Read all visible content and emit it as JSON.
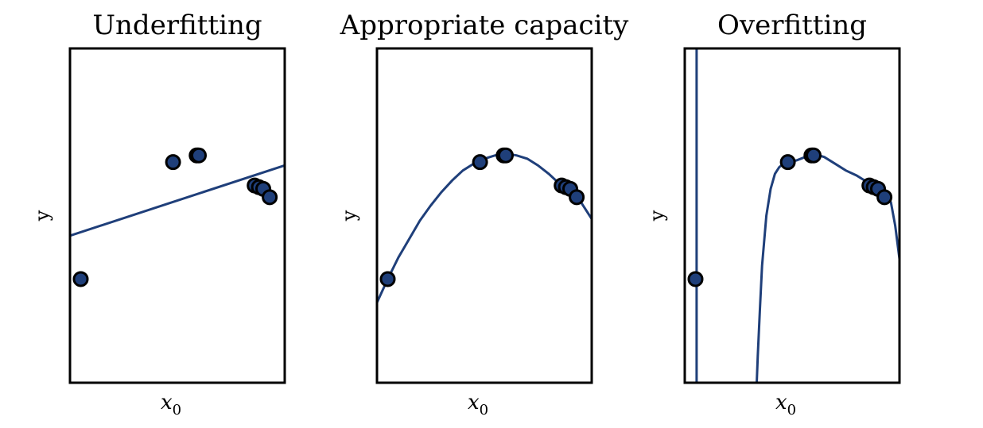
{
  "chart_data": [
    {
      "type": "scatter",
      "title": "Underfitting",
      "xlabel": "x",
      "xlabel_sub": "0",
      "ylabel": "y",
      "xlim": [
        0,
        1
      ],
      "ylim": [
        0,
        1
      ],
      "colors": {
        "series": "#1f3f7a",
        "marker_edge": "#000000"
      },
      "points": [
        {
          "x": 0.05,
          "y": 0.31
        },
        {
          "x": 0.48,
          "y": 0.66
        },
        {
          "x": 0.59,
          "y": 0.68
        },
        {
          "x": 0.6,
          "y": 0.68
        },
        {
          "x": 0.86,
          "y": 0.59
        },
        {
          "x": 0.88,
          "y": 0.585
        },
        {
          "x": 0.9,
          "y": 0.58
        },
        {
          "x": 0.93,
          "y": 0.555
        }
      ],
      "fit": {
        "kind": "line",
        "degree": 1,
        "x": [
          0.0,
          1.0
        ],
        "y": [
          0.44,
          0.65
        ]
      }
    },
    {
      "type": "scatter",
      "title": "Appropriate capacity",
      "xlabel": "x",
      "xlabel_sub": "0",
      "ylabel": "y",
      "xlim": [
        0,
        1
      ],
      "ylim": [
        0,
        1
      ],
      "colors": {
        "series": "#1f3f7a",
        "marker_edge": "#000000"
      },
      "points": [
        {
          "x": 0.05,
          "y": 0.31
        },
        {
          "x": 0.48,
          "y": 0.66
        },
        {
          "x": 0.59,
          "y": 0.68
        },
        {
          "x": 0.6,
          "y": 0.68
        },
        {
          "x": 0.86,
          "y": 0.59
        },
        {
          "x": 0.88,
          "y": 0.585
        },
        {
          "x": 0.9,
          "y": 0.58
        },
        {
          "x": 0.93,
          "y": 0.555
        }
      ],
      "fit": {
        "kind": "curve",
        "degree": 2,
        "x": [
          0.0,
          0.05,
          0.1,
          0.15,
          0.2,
          0.25,
          0.3,
          0.35,
          0.4,
          0.45,
          0.5,
          0.55,
          0.6,
          0.65,
          0.7,
          0.75,
          0.8,
          0.85,
          0.9,
          0.95,
          1.0
        ],
        "y": [
          0.24,
          0.31,
          0.375,
          0.43,
          0.485,
          0.53,
          0.57,
          0.605,
          0.635,
          0.655,
          0.67,
          0.68,
          0.685,
          0.68,
          0.67,
          0.65,
          0.625,
          0.595,
          0.57,
          0.54,
          0.49
        ]
      }
    },
    {
      "type": "scatter",
      "title": "Overfitting",
      "xlabel": "x",
      "xlabel_sub": "0",
      "ylabel": "y",
      "xlim": [
        0,
        1
      ],
      "ylim": [
        0,
        1
      ],
      "colors": {
        "series": "#1f3f7a",
        "marker_edge": "#000000"
      },
      "points": [
        {
          "x": 0.05,
          "y": 0.31
        },
        {
          "x": 0.48,
          "y": 0.66
        },
        {
          "x": 0.59,
          "y": 0.68
        },
        {
          "x": 0.6,
          "y": 0.68
        },
        {
          "x": 0.86,
          "y": 0.59
        },
        {
          "x": 0.88,
          "y": 0.585
        },
        {
          "x": 0.9,
          "y": 0.58
        },
        {
          "x": 0.93,
          "y": 0.555
        }
      ],
      "fit": {
        "kind": "curve",
        "degree": "high",
        "segments": [
          {
            "x": [
              0.055,
              0.055
            ],
            "y": [
              0.0,
              1.0
            ]
          },
          {
            "x": [
              0.335,
              0.34,
              0.35,
              0.36,
              0.38,
              0.4,
              0.42,
              0.44,
              0.46,
              0.48,
              0.52,
              0.56,
              0.6,
              0.65,
              0.7,
              0.75,
              0.8,
              0.85,
              0.88,
              0.9,
              0.93,
              0.96,
              0.98,
              1.0
            ],
            "y": [
              0.0,
              0.08,
              0.22,
              0.35,
              0.5,
              0.58,
              0.625,
              0.645,
              0.655,
              0.66,
              0.665,
              0.675,
              0.685,
              0.675,
              0.655,
              0.635,
              0.62,
              0.6,
              0.585,
              0.575,
              0.565,
              0.54,
              0.47,
              0.37
            ]
          }
        ]
      }
    }
  ]
}
